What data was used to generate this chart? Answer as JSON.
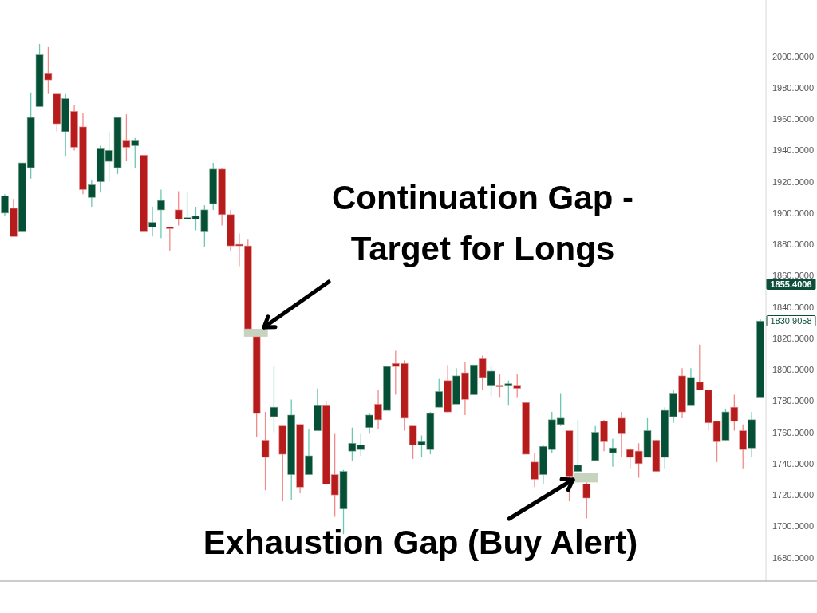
{
  "chart_data": {
    "type": "candlestick",
    "categories": [
      null,
      null,
      null,
      null,
      null,
      null,
      null,
      null,
      null,
      null,
      null,
      null,
      null,
      null,
      null,
      null,
      null,
      null,
      null,
      null,
      null,
      null,
      null,
      null,
      null,
      null,
      null,
      null,
      null,
      null,
      null,
      null,
      null,
      null,
      null,
      null,
      null,
      null,
      null,
      null,
      null,
      null,
      null,
      null,
      null,
      null,
      null,
      null,
      null,
      null,
      null,
      null,
      null,
      null,
      null,
      null,
      null,
      null,
      null,
      null,
      null,
      null,
      null,
      null,
      null,
      null,
      null,
      null,
      null,
      null,
      null,
      null,
      null,
      null,
      null,
      null,
      null,
      null,
      null,
      null,
      null,
      null,
      null,
      null,
      null,
      null,
      null,
      null
    ],
    "ohlc": [
      [
        1900,
        1912,
        1898,
        1911
      ],
      [
        1903,
        1909,
        1885,
        1885
      ],
      [
        1888,
        1932,
        1888,
        1932
      ],
      [
        1929,
        1977,
        1922,
        1961
      ],
      [
        1968,
        2008,
        1968,
        2001
      ],
      [
        1989,
        2006,
        1976,
        1985
      ],
      [
        1976,
        1976,
        1952,
        1957
      ],
      [
        1952,
        1976,
        1936,
        1973
      ],
      [
        1965,
        1969,
        1940,
        1942
      ],
      [
        1955,
        1964,
        1912,
        1915
      ],
      [
        1910,
        1921,
        1904,
        1918
      ],
      [
        1920,
        1943,
        1913,
        1941
      ],
      [
        1933,
        1952,
        1920,
        1940
      ],
      [
        1929,
        1961,
        1925,
        1961
      ],
      [
        1946,
        1963,
        1933,
        1942
      ],
      [
        1943,
        1948,
        1929,
        1946
      ],
      [
        1937,
        1937,
        1888,
        1888
      ],
      [
        1891,
        1904,
        1885,
        1894
      ],
      [
        1902,
        1915,
        1884,
        1908
      ],
      [
        1891,
        1891,
        1876,
        1890
      ],
      [
        1902,
        1914,
        1892,
        1896
      ],
      [
        1896,
        1913,
        1896,
        1897
      ],
      [
        1896,
        1904,
        1889,
        1898
      ],
      [
        1888,
        1905,
        1878,
        1902
      ],
      [
        1906,
        1932,
        1902,
        1928
      ],
      [
        1928,
        1929,
        1892,
        1899
      ],
      [
        1899,
        1902,
        1876,
        1879
      ],
      [
        1880,
        1887,
        1866,
        1879
      ],
      [
        1879,
        1883,
        1826,
        1826
      ],
      [
        1821,
        1821,
        1757,
        1772
      ],
      [
        1755,
        1773,
        1723,
        1744
      ],
      [
        1770,
        1802,
        1760,
        1776
      ],
      [
        1764,
        1764,
        1716,
        1746
      ],
      [
        1733,
        1781,
        1717,
        1771
      ],
      [
        1765,
        1765,
        1721,
        1725
      ],
      [
        1733,
        1762,
        1733,
        1745
      ],
      [
        1761,
        1788,
        1761,
        1777
      ],
      [
        1777,
        1780,
        1727,
        1727
      ],
      [
        1733,
        1759,
        1706,
        1720
      ],
      [
        1711,
        1736,
        1695,
        1735
      ],
      [
        1748,
        1763,
        1742,
        1753
      ],
      [
        1749,
        1759,
        1745,
        1752
      ],
      [
        1763,
        1772,
        1759,
        1771
      ],
      [
        1778,
        1787,
        1762,
        1768
      ],
      [
        1774,
        1802,
        1774,
        1802
      ],
      [
        1804,
        1812,
        1784,
        1802
      ],
      [
        1804,
        1806,
        1761,
        1769
      ],
      [
        1764,
        1764,
        1743,
        1752
      ],
      [
        1752,
        1758,
        1744,
        1754
      ],
      [
        1749,
        1773,
        1746,
        1772
      ],
      [
        1776,
        1794,
        1776,
        1786
      ],
      [
        1793,
        1803,
        1772,
        1773
      ],
      [
        1778,
        1801,
        1778,
        1796
      ],
      [
        1798,
        1805,
        1771,
        1781
      ],
      [
        1784,
        1803,
        1784,
        1803
      ],
      [
        1807,
        1809,
        1787,
        1795
      ],
      [
        1790,
        1802,
        1783,
        1799
      ],
      [
        1790,
        1797,
        1782,
        1789
      ],
      [
        1790,
        1793,
        1777,
        1791
      ],
      [
        1790,
        1797,
        1782,
        1788
      ],
      [
        1779,
        1779,
        1746,
        1746
      ],
      [
        1741,
        1747,
        1725,
        1730
      ],
      [
        1733,
        1752,
        1727,
        1751
      ],
      [
        1749,
        1773,
        1747,
        1768
      ],
      [
        1765,
        1785,
        1764,
        1769
      ],
      [
        1761,
        1761,
        1716,
        1732
      ],
      [
        1735,
        1768,
        1734,
        1739
      ],
      [
        1727,
        1728,
        1705,
        1718
      ],
      [
        1742,
        1764,
        1742,
        1760
      ],
      [
        1767,
        1768,
        1748,
        1754
      ],
      [
        1747,
        1756,
        1738,
        1750
      ],
      [
        1769,
        1773,
        1744,
        1759
      ],
      [
        1749,
        1750,
        1737,
        1744
      ],
      [
        1748,
        1753,
        1731,
        1740
      ],
      [
        1744,
        1769,
        1744,
        1761
      ],
      [
        1755,
        1755,
        1735,
        1735
      ],
      [
        1744,
        1776,
        1737,
        1774
      ],
      [
        1770,
        1787,
        1766,
        1785
      ],
      [
        1796,
        1801,
        1769,
        1773
      ],
      [
        1777,
        1801,
        1777,
        1795
      ],
      [
        1792,
        1816,
        1787,
        1787
      ],
      [
        1787,
        1787,
        1761,
        1766
      ],
      [
        1767,
        1767,
        1741,
        1754
      ],
      [
        1755,
        1775,
        1755,
        1773
      ],
      [
        1776,
        1784,
        1761,
        1767
      ],
      [
        1761,
        1765,
        1737,
        1749
      ],
      [
        1750,
        1773,
        1744,
        1768
      ],
      [
        1782,
        1832,
        1782,
        1831
      ]
    ],
    "ylim": [
      1665,
      2036
    ],
    "yticks": [
      {
        "value": 1680,
        "label": "1680.0000"
      },
      {
        "value": 1700,
        "label": "1700.0000"
      },
      {
        "value": 1720,
        "label": "1720.0000"
      },
      {
        "value": 1740,
        "label": "1740.0000"
      },
      {
        "value": 1760,
        "label": "1760.0000"
      },
      {
        "value": 1780,
        "label": "1780.0000"
      },
      {
        "value": 1800,
        "label": "1800.0000"
      },
      {
        "value": 1820,
        "label": "1820.0000"
      },
      {
        "value": 1840,
        "label": "1840.0000"
      },
      {
        "value": 1860,
        "label": "1860.0000"
      },
      {
        "value": 1880,
        "label": "1880.0000"
      },
      {
        "value": 1900,
        "label": "1900.0000"
      },
      {
        "value": 1920,
        "label": "1920.0000"
      },
      {
        "value": 1940,
        "label": "1940.0000"
      },
      {
        "value": 1960,
        "label": "1960.0000"
      },
      {
        "value": 1980,
        "label": "1980.0000"
      },
      {
        "value": 2000,
        "label": "2000.0000"
      }
    ],
    "tick_labels": "y",
    "annotations": [
      "Continuation Gap - Target for Longs",
      "Exhaustion Gap (Buy Alert)",
      "1855.4006",
      "1830.9058"
    ]
  }
}
